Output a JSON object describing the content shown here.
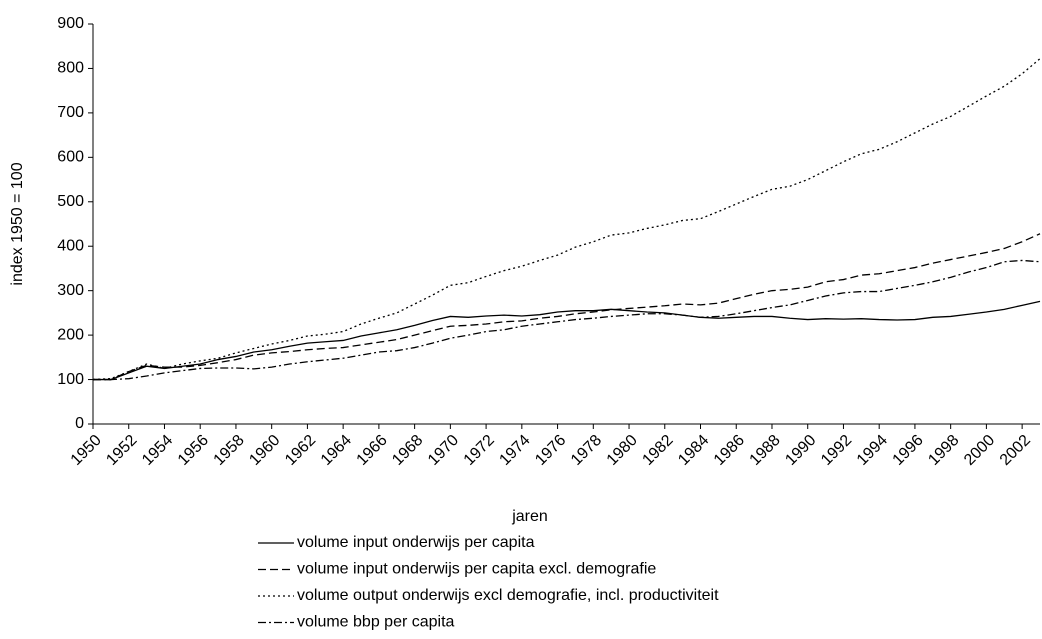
{
  "chart_data": {
    "type": "line",
    "x_label": "jaren",
    "y_label": "index 1950 = 100",
    "x": [
      1950,
      1951,
      1952,
      1953,
      1954,
      1955,
      1956,
      1957,
      1958,
      1959,
      1960,
      1961,
      1962,
      1963,
      1964,
      1965,
      1966,
      1967,
      1968,
      1969,
      1970,
      1971,
      1972,
      1973,
      1974,
      1975,
      1976,
      1977,
      1978,
      1979,
      1980,
      1981,
      1982,
      1983,
      1984,
      1985,
      1986,
      1987,
      1988,
      1989,
      1990,
      1991,
      1992,
      1993,
      1994,
      1995,
      1996,
      1997,
      1998,
      1999,
      2000,
      2001,
      2002,
      2003
    ],
    "xlim": [
      1950,
      2003
    ],
    "xticks": [
      1950,
      1952,
      1954,
      1956,
      1958,
      1960,
      1962,
      1964,
      1966,
      1968,
      1970,
      1972,
      1974,
      1976,
      1978,
      1980,
      1982,
      1984,
      1986,
      1988,
      1990,
      1992,
      1994,
      1996,
      1998,
      2000,
      2002
    ],
    "ylim": [
      0,
      900
    ],
    "yticks": [
      0,
      100,
      200,
      300,
      400,
      500,
      600,
      700,
      800,
      900
    ],
    "series": [
      {
        "name": "volume input onderwijs per capita",
        "color": "#000000",
        "style": "solid",
        "values": [
          100,
          100,
          115,
          130,
          125,
          130,
          135,
          145,
          152,
          162,
          167,
          175,
          182,
          185,
          188,
          198,
          205,
          212,
          222,
          233,
          242,
          240,
          243,
          245,
          243,
          246,
          252,
          255,
          255,
          258,
          255,
          252,
          250,
          245,
          240,
          238,
          240,
          242,
          242,
          238,
          235,
          237,
          236,
          237,
          235,
          234,
          235,
          240,
          242,
          247,
          252,
          258,
          267,
          276
        ]
      },
      {
        "name": "volume input onderwijs per capita excl. demografie",
        "color": "#000000",
        "style": "dashed",
        "values": [
          100,
          100,
          118,
          132,
          128,
          128,
          132,
          138,
          145,
          155,
          160,
          163,
          167,
          170,
          172,
          178,
          184,
          190,
          200,
          210,
          220,
          222,
          225,
          230,
          232,
          238,
          242,
          248,
          252,
          257,
          260,
          263,
          266,
          270,
          268,
          272,
          282,
          292,
          300,
          303,
          308,
          320,
          325,
          335,
          338,
          345,
          352,
          362,
          370,
          378,
          386,
          395,
          410,
          428
        ]
      },
      {
        "name": "volume output onderwijs excl demografie, incl. productiviteit",
        "color": "#000000",
        "style": "dotted",
        "values": [
          100,
          102,
          118,
          135,
          125,
          135,
          142,
          148,
          160,
          170,
          180,
          188,
          198,
          202,
          208,
          225,
          238,
          250,
          270,
          290,
          312,
          318,
          332,
          345,
          355,
          368,
          380,
          398,
          410,
          425,
          430,
          440,
          448,
          458,
          462,
          478,
          495,
          512,
          528,
          535,
          550,
          570,
          590,
          608,
          618,
          635,
          655,
          675,
          692,
          715,
          738,
          760,
          788,
          822
        ]
      },
      {
        "name": "volume bbp per capita",
        "color": "#000000",
        "style": "dashdot",
        "values": [
          100,
          100,
          102,
          108,
          115,
          120,
          125,
          126,
          126,
          124,
          128,
          135,
          140,
          144,
          148,
          155,
          162,
          165,
          172,
          182,
          193,
          200,
          208,
          212,
          220,
          225,
          230,
          235,
          238,
          242,
          245,
          248,
          248,
          245,
          240,
          242,
          248,
          255,
          262,
          268,
          278,
          288,
          295,
          298,
          298,
          305,
          312,
          320,
          330,
          342,
          352,
          365,
          368,
          365
        ]
      }
    ]
  }
}
